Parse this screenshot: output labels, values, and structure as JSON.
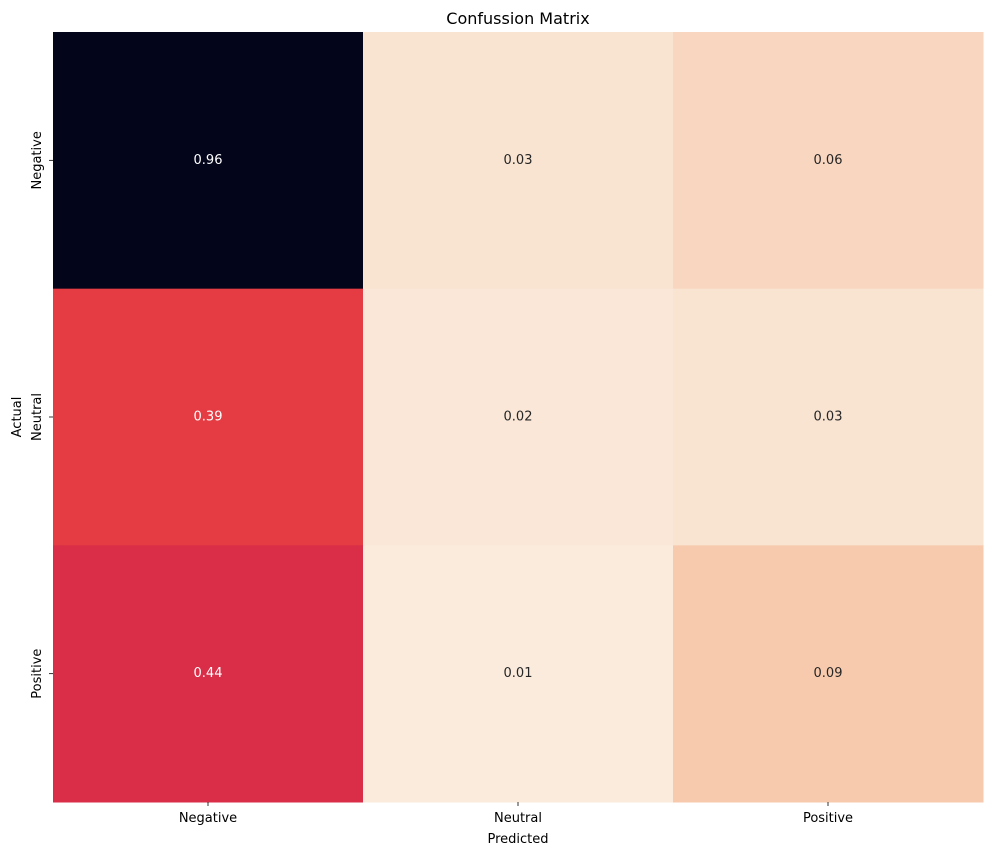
{
  "chart_data": {
    "type": "heatmap",
    "title": "Confussion Matrix",
    "xlabel": "Predicted",
    "ylabel": "Actual",
    "x_categories": [
      "Negative",
      "Neutral",
      "Positive"
    ],
    "y_categories": [
      "Negative",
      "Neutral",
      "Positive"
    ],
    "values": [
      [
        0.96,
        0.03,
        0.06
      ],
      [
        0.39,
        0.02,
        0.03
      ],
      [
        0.44,
        0.01,
        0.09
      ]
    ],
    "colormap": "rocket",
    "annotations": true,
    "colorbar": false
  },
  "colors": {
    "dark_text": "#262626",
    "light_text": "#ffffff",
    "axis": "#000000"
  }
}
